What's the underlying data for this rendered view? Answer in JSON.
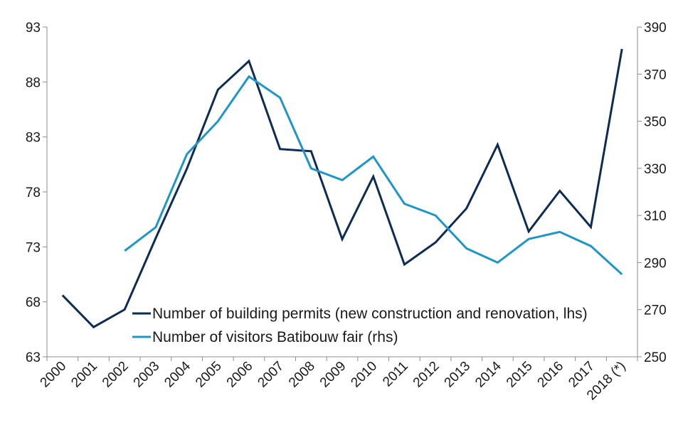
{
  "chart_data": {
    "type": "line",
    "title": "",
    "categories": [
      "2000",
      "2001",
      "2002",
      "2003",
      "2004",
      "2005",
      "2006",
      "2007",
      "2008",
      "2009",
      "2010",
      "2011",
      "2012",
      "2013",
      "2014",
      "2015",
      "2016",
      "2017",
      "2018 (*)"
    ],
    "y_left": {
      "min": 63,
      "max": 93,
      "ticks": [
        "63",
        "68",
        "73",
        "78",
        "83",
        "88",
        "93"
      ]
    },
    "y_right": {
      "min": 250,
      "max": 390,
      "ticks": [
        "250",
        "270",
        "290",
        "310",
        "330",
        "350",
        "370",
        "390"
      ]
    },
    "grid": false,
    "legend_position": "bottom-center",
    "series": [
      {
        "name": "Number of building permits (new construction and renovation, lhs)",
        "axis": "left",
        "color": "#0d2c54",
        "values": [
          68.6,
          65.7,
          67.3,
          73.8,
          80.1,
          87.3,
          89.9,
          81.9,
          81.7,
          73.7,
          79.4,
          71.4,
          73.4,
          76.5,
          82.3,
          74.4,
          78.1,
          74.8,
          91.0
        ]
      },
      {
        "name": "Number of visitors Batibouw fair (rhs)",
        "axis": "right",
        "color": "#1e96c8",
        "values": [
          null,
          null,
          295,
          305,
          336,
          350,
          369,
          360,
          330,
          325,
          335,
          315,
          310,
          296,
          290,
          300,
          303,
          297,
          285
        ]
      }
    ]
  }
}
